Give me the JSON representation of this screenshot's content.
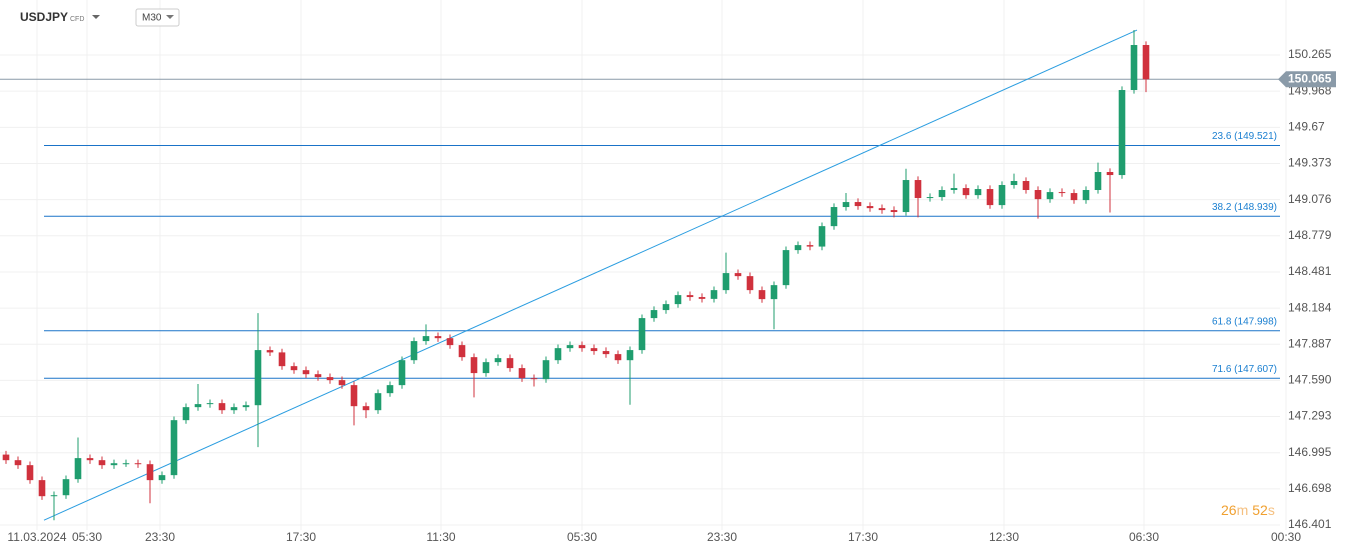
{
  "header": {
    "symbol": "USDJPY",
    "instrument_type": "CFD",
    "timeframe": "M30"
  },
  "timer": [
    "26",
    "m",
    "52",
    "s"
  ],
  "chart_data": {
    "type": "candlestick",
    "up_color": "#1f9d6e",
    "down_color": "#d0313d",
    "grid": true,
    "ylim": [
      146.36,
      150.717
    ],
    "yticks": [
      146.401,
      146.698,
      146.995,
      147.293,
      {
        "value": 147.59,
        "label": "147.590"
      },
      147.887,
      148.184,
      148.481,
      148.779,
      149.076,
      149.373,
      149.67,
      149.968,
      150.265
    ],
    "x_labels": [
      "11.03.2024",
      "05:30",
      "23:30",
      "17:30",
      "11:30",
      "05:30",
      "23:30",
      "17:30",
      "12:30",
      "06:30",
      "00:30"
    ],
    "last_price": 150.065,
    "fib_levels": [
      {
        "label": "23.6 (149.521)",
        "value": 149.521
      },
      {
        "label": "38.2 (148.939)",
        "value": 148.939
      },
      {
        "label": "61.8 (147.998)",
        "value": 147.998
      },
      {
        "label": "71.6 (147.607)",
        "value": 147.607
      }
    ],
    "trendline": [
      146.441,
      150.47
    ],
    "open": [
      146.98,
      146.934,
      146.893,
      146.77,
      146.638,
      146.646,
      146.778,
      146.951,
      146.934,
      146.893,
      146.909,
      146.909,
      146.901,
      146.77,
      146.811,
      147.263,
      147.37,
      147.395,
      147.403,
      147.345,
      147.37,
      147.386,
      147.839,
      147.82,
      147.707,
      147.674,
      147.641,
      147.617,
      147.592,
      147.551,
      147.378,
      147.345,
      147.485,
      147.551,
      147.756,
      147.913,
      147.954,
      147.937,
      147.88,
      147.781,
      147.65,
      147.74,
      147.773,
      147.691,
      147.608,
      147.6,
      147.756,
      147.855,
      147.88,
      147.855,
      147.831,
      147.806,
      147.756,
      147.839,
      148.102,
      148.168,
      148.217,
      148.291,
      148.275,
      148.26,
      148.332,
      148.472,
      148.447,
      148.332,
      148.258,
      148.373,
      148.661,
      148.702,
      148.69,
      148.858,
      149.015,
      149.056,
      149.023,
      149.006,
      148.99,
      148.974,
      149.237,
      149.089,
      149.097,
      149.155,
      149.171,
      149.113,
      149.163,
      149.031,
      149.196,
      149.229,
      149.155,
      149.08,
      149.138,
      149.13,
      149.072,
      149.155,
      149.303,
      149.278,
      149.977,
      150.347
    ],
    "high": [
      147.01,
      146.964,
      146.923,
      146.8,
      146.676,
      146.808,
      147.12,
      146.981,
      146.964,
      146.939,
      146.939,
      146.939,
      146.931,
      146.841,
      147.293,
      147.4,
      147.56,
      147.433,
      147.433,
      147.4,
      147.416,
      148.143,
      147.869,
      147.85,
      147.737,
      147.704,
      147.671,
      147.647,
      147.622,
      147.581,
      147.408,
      147.515,
      147.581,
      147.786,
      147.943,
      148.05,
      147.984,
      147.967,
      147.91,
      147.811,
      147.77,
      147.803,
      147.803,
      147.721,
      147.638,
      147.786,
      147.885,
      147.91,
      147.91,
      147.885,
      147.861,
      147.836,
      147.869,
      148.132,
      148.198,
      148.247,
      148.321,
      148.321,
      148.305,
      148.362,
      148.64,
      148.502,
      148.477,
      148.362,
      148.403,
      148.691,
      148.732,
      148.732,
      148.888,
      149.045,
      149.13,
      149.086,
      149.053,
      149.036,
      149.02,
      149.33,
      149.267,
      149.127,
      149.185,
      149.29,
      149.201,
      149.193,
      149.193,
      149.226,
      149.29,
      149.259,
      149.185,
      149.168,
      149.168,
      149.16,
      149.185,
      149.38,
      149.333,
      150.007,
      150.47,
      150.377
    ],
    "low": [
      146.904,
      146.863,
      146.74,
      146.608,
      146.44,
      146.616,
      146.748,
      146.904,
      146.863,
      146.863,
      146.879,
      146.871,
      146.58,
      146.74,
      146.781,
      147.233,
      147.34,
      147.365,
      147.315,
      147.315,
      147.34,
      147.041,
      147.79,
      147.677,
      147.644,
      147.611,
      147.587,
      147.562,
      147.521,
      147.22,
      147.28,
      147.315,
      147.455,
      147.521,
      147.726,
      147.883,
      147.907,
      147.85,
      147.751,
      147.45,
      147.62,
      147.71,
      147.661,
      147.578,
      147.54,
      147.57,
      147.726,
      147.825,
      147.825,
      147.801,
      147.776,
      147.726,
      147.39,
      147.809,
      148.072,
      148.138,
      148.187,
      148.245,
      148.23,
      148.23,
      148.302,
      148.417,
      148.302,
      148.228,
      148.01,
      148.343,
      148.631,
      148.66,
      148.66,
      148.828,
      148.985,
      148.993,
      148.976,
      148.96,
      148.93,
      148.944,
      148.93,
      149.059,
      149.067,
      149.125,
      149.083,
      149.083,
      149.001,
      149.001,
      149.166,
      149.125,
      148.92,
      149.05,
      149.1,
      149.042,
      149.042,
      149.125,
      148.97,
      149.248,
      149.947,
      149.96
    ],
    "close": [
      146.934,
      146.893,
      146.77,
      146.638,
      146.646,
      146.778,
      146.951,
      146.934,
      146.893,
      146.909,
      146.909,
      146.901,
      146.77,
      146.811,
      147.263,
      147.37,
      147.395,
      147.403,
      147.345,
      147.37,
      147.386,
      147.839,
      147.82,
      147.707,
      147.674,
      147.641,
      147.617,
      147.592,
      147.551,
      147.378,
      147.345,
      147.485,
      147.551,
      147.756,
      147.913,
      147.954,
      147.937,
      147.88,
      147.781,
      147.65,
      147.74,
      147.773,
      147.691,
      147.608,
      147.6,
      147.756,
      147.855,
      147.88,
      147.855,
      147.831,
      147.806,
      147.756,
      147.839,
      148.102,
      148.168,
      148.217,
      148.291,
      148.275,
      148.26,
      148.332,
      148.472,
      148.447,
      148.332,
      148.258,
      148.373,
      148.661,
      148.702,
      148.69,
      148.858,
      149.015,
      149.056,
      149.023,
      149.006,
      148.99,
      148.974,
      149.237,
      149.089,
      149.097,
      149.155,
      149.171,
      149.113,
      149.163,
      149.031,
      149.196,
      149.229,
      149.155,
      149.08,
      149.138,
      149.13,
      149.072,
      149.155,
      149.303,
      149.278,
      149.977,
      150.347,
      150.065
    ]
  }
}
